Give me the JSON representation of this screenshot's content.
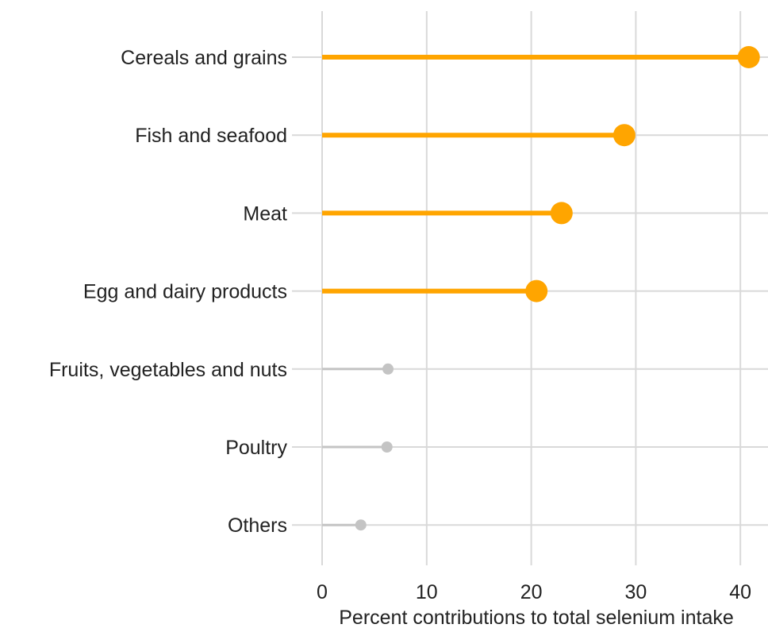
{
  "chart_data": {
    "type": "lollipop",
    "title": "",
    "xlabel": "Percent contributions to total selenium intake",
    "ylabel": "",
    "xlim": [
      0,
      42
    ],
    "x_ticks": [
      0,
      10,
      20,
      30,
      40
    ],
    "grid": true,
    "legend": "none",
    "categories": [
      "Cereals and grains",
      "Fish and seafood",
      "Meat",
      "Egg and dairy products",
      "Fruits, vegetables and nuts",
      "Poultry",
      "Others"
    ],
    "values": [
      40.8,
      28.9,
      22.9,
      20.5,
      6.3,
      6.2,
      3.7
    ],
    "highlighted": [
      true,
      true,
      true,
      true,
      false,
      false,
      false
    ],
    "colors": {
      "highlight": "#ffa500",
      "muted": "#c4c4c4",
      "grid": "#d9d9d9",
      "text": "#222222"
    }
  }
}
